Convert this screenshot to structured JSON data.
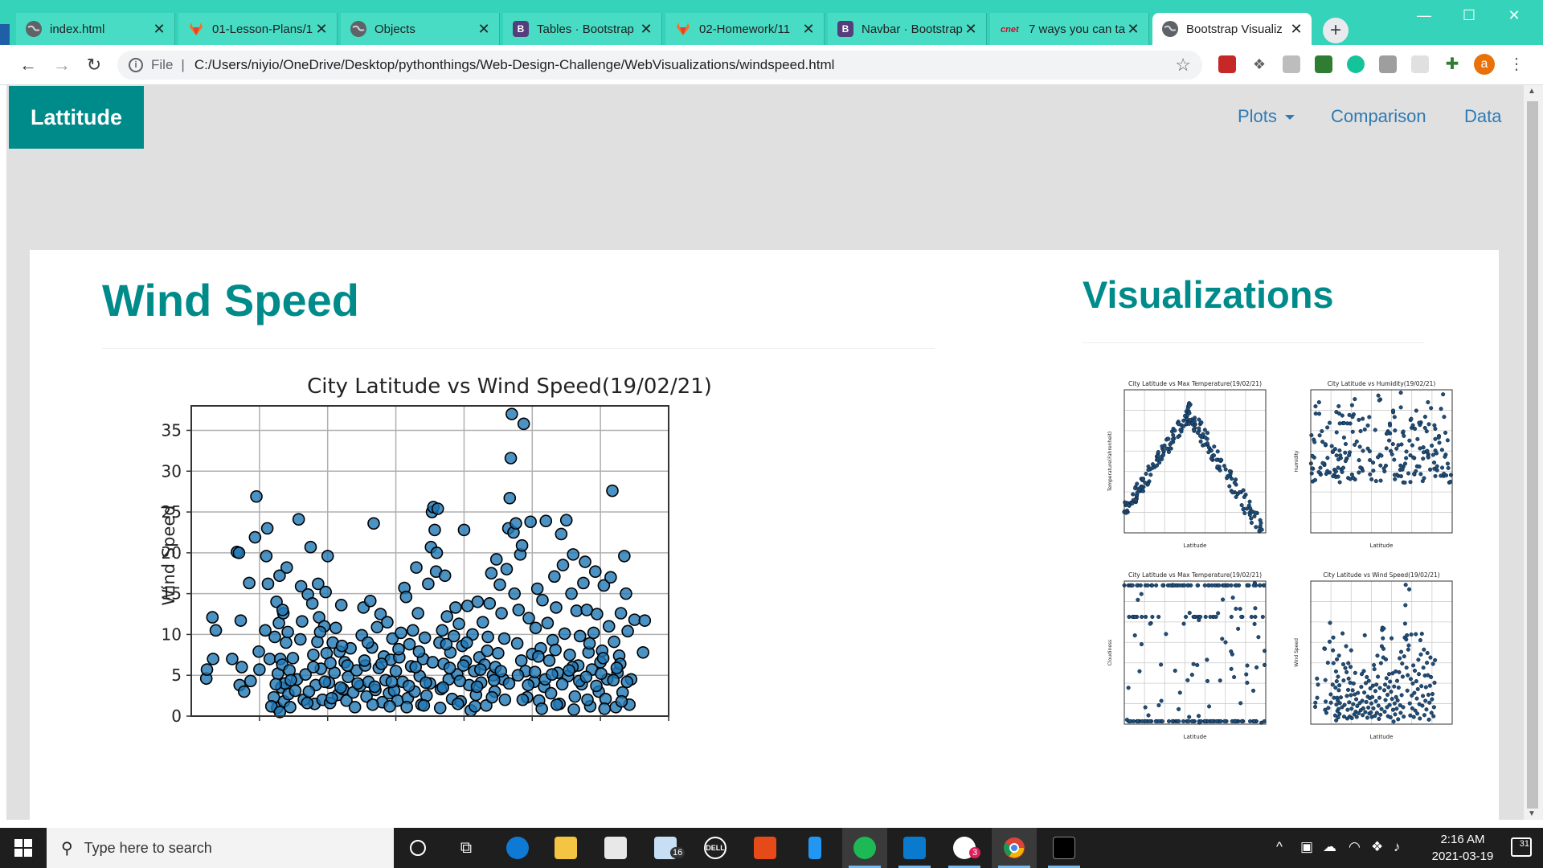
{
  "browser": {
    "tabs": [
      {
        "title": "index.html",
        "favicon": "globe-icon"
      },
      {
        "title": "01-Lesson-Plans/1",
        "favicon": "gitlab-icon"
      },
      {
        "title": "Objects",
        "favicon": "globe-icon"
      },
      {
        "title": "Tables · Bootstrap",
        "favicon": "bootstrap-icon"
      },
      {
        "title": "02-Homework/11",
        "favicon": "gitlab-icon"
      },
      {
        "title": "Navbar · Bootstrap",
        "favicon": "bootstrap-icon"
      },
      {
        "title": "7 ways you can ta",
        "favicon": "cnet-icon"
      },
      {
        "title": "Bootstrap Visualiz",
        "favicon": "globe-icon",
        "active": true
      }
    ],
    "address": {
      "scheme_label": "File",
      "url": "C:/Users/niyio/OneDrive/Desktop/pythonthings/Web-Design-Challenge/WebVisualizations/windspeed.html"
    },
    "profile_initial": "a"
  },
  "page": {
    "brand": "Lattitude",
    "nav": {
      "plots": "Plots",
      "comparison": "Comparison",
      "data": "Data"
    },
    "main_title": "Wind Speed",
    "side_title": "Visualizations",
    "accent_color": "#008b8b",
    "link_color": "#2f7ab3",
    "thumbnails": [
      {
        "title": "City Latitude vs Max Temperature(19/02/21)",
        "ylabel": "Temperature(Fahrenheit)",
        "xlabel": "Latitude"
      },
      {
        "title": "City Latitude vs Humidity(19/02/21)",
        "ylabel": "Humidity",
        "xlabel": "Latitude"
      },
      {
        "title": "City Latitude vs Max Temperature(19/02/21)",
        "ylabel": "Cloudiness",
        "xlabel": "Latitude"
      },
      {
        "title": "City Latitude vs Wind Speed(19/02/21)",
        "ylabel": "Wind Speed",
        "xlabel": "Latitude"
      }
    ]
  },
  "chart_data": {
    "type": "scatter",
    "title": "City Latitude vs Wind Speed(19/02/21)",
    "xlabel": "",
    "ylabel": "Wind Speed",
    "xlim": [
      -60,
      80
    ],
    "ylim": [
      0,
      38
    ],
    "yticks": [
      0,
      5,
      10,
      15,
      20,
      25,
      30,
      35
    ],
    "xticks": [
      -40,
      -20,
      0,
      20,
      40,
      60,
      80
    ],
    "grid": true,
    "marker_color": "#1f77b4",
    "points": [
      [
        -55.6,
        4.6
      ],
      [
        -55.4,
        5.7
      ],
      [
        -53.8,
        12.1
      ],
      [
        -53.6,
        7.0
      ],
      [
        -52.8,
        10.5
      ],
      [
        -46.6,
        20.1
      ],
      [
        -46.0,
        20.0
      ],
      [
        -45.8,
        3.8
      ],
      [
        -45.5,
        11.7
      ],
      [
        -45.2,
        6.0
      ],
      [
        -44.5,
        3.0
      ],
      [
        -43.0,
        16.3
      ],
      [
        -42.6,
        4.3
      ],
      [
        -41.3,
        21.9
      ],
      [
        -40.9,
        26.9
      ],
      [
        -40.2,
        7.9
      ],
      [
        -40.0,
        5.7
      ],
      [
        -38.3,
        10.5
      ],
      [
        -38.0,
        19.6
      ],
      [
        -37.7,
        23.0
      ],
      [
        -37.5,
        16.2
      ],
      [
        -37.0,
        7.0
      ],
      [
        -35.8,
        2.3
      ],
      [
        -35.5,
        9.7
      ],
      [
        -35.0,
        14.0
      ],
      [
        -34.8,
        1.0
      ],
      [
        -34.6,
        5.2
      ],
      [
        -34.3,
        11.4
      ],
      [
        -34.1,
        17.2
      ],
      [
        -33.9,
        7.0
      ],
      [
        -33.6,
        3.5
      ],
      [
        -33.3,
        6.3
      ],
      [
        -33.0,
        12.6
      ],
      [
        -32.8,
        1.8
      ],
      [
        -32.5,
        4.0
      ],
      [
        -32.2,
        9.0
      ],
      [
        -32.0,
        18.2
      ],
      [
        -31.7,
        10.3
      ],
      [
        -31.5,
        2.7
      ],
      [
        -31.2,
        5.6
      ],
      [
        -30.2,
        7.1
      ],
      [
        -29.0,
        4.5
      ],
      [
        -28.5,
        24.1
      ],
      [
        -27.8,
        15.9
      ],
      [
        -27.5,
        11.6
      ],
      [
        -27.0,
        2.0
      ],
      [
        -26.5,
        5.1
      ],
      [
        -25.8,
        14.9
      ],
      [
        -25.0,
        20.7
      ],
      [
        -24.5,
        13.8
      ],
      [
        -24.2,
        7.5
      ],
      [
        -23.8,
        1.5
      ],
      [
        -23.5,
        3.8
      ],
      [
        -23.0,
        9.1
      ],
      [
        -22.8,
        16.2
      ],
      [
        -22.5,
        12.1
      ],
      [
        -22.0,
        5.8
      ],
      [
        -21.5,
        2.0
      ],
      [
        -21.0,
        11.0
      ],
      [
        -20.6,
        15.2
      ],
      [
        -20.3,
        7.7
      ],
      [
        -20.0,
        19.6
      ],
      [
        -19.6,
        4.1
      ],
      [
        -19.3,
        1.6
      ],
      [
        -18.5,
        9.0
      ],
      [
        -18.0,
        5.3
      ],
      [
        -17.6,
        10.8
      ],
      [
        -17.0,
        2.6
      ],
      [
        -16.5,
        7.9
      ],
      [
        -16.0,
        13.6
      ],
      [
        -15.5,
        3.3
      ],
      [
        -15.0,
        6.6
      ],
      [
        -14.5,
        1.9
      ],
      [
        -14.0,
        4.8
      ],
      [
        -13.3,
        8.3
      ],
      [
        -12.5,
        2.9
      ],
      [
        -11.5,
        5.6
      ],
      [
        -10.5,
        3.7
      ],
      [
        -10.0,
        9.9
      ],
      [
        -9.5,
        13.3
      ],
      [
        -9.0,
        6.2
      ],
      [
        -8.6,
        2.4
      ],
      [
        -8.0,
        4.2
      ],
      [
        -7.5,
        14.1
      ],
      [
        -7.0,
        8.4
      ],
      [
        -6.5,
        23.6
      ],
      [
        -6.0,
        3.2
      ],
      [
        -5.5,
        10.9
      ],
      [
        -5.0,
        5.9
      ],
      [
        -4.5,
        12.5
      ],
      [
        -4.0,
        1.7
      ],
      [
        -3.5,
        7.3
      ],
      [
        -3.0,
        4.4
      ],
      [
        -2.5,
        11.5
      ],
      [
        -2.0,
        2.8
      ],
      [
        -1.5,
        6.9
      ],
      [
        -1.0,
        9.5
      ],
      [
        -0.5,
        3.1
      ],
      [
        0.0,
        5.5
      ],
      [
        0.5,
        1.9
      ],
      [
        1.0,
        7.2
      ],
      [
        1.5,
        10.2
      ],
      [
        2.0,
        4.2
      ],
      [
        2.5,
        15.7
      ],
      [
        3.0,
        14.6
      ],
      [
        3.5,
        2.2
      ],
      [
        4.0,
        8.8
      ],
      [
        4.5,
        6.1
      ],
      [
        5.0,
        10.5
      ],
      [
        5.5,
        3.0
      ],
      [
        6.0,
        18.2
      ],
      [
        6.5,
        12.6
      ],
      [
        7.0,
        4.9
      ],
      [
        7.5,
        1.4
      ],
      [
        8.0,
        7.0
      ],
      [
        8.5,
        9.6
      ],
      [
        9.0,
        2.5
      ],
      [
        9.5,
        16.2
      ],
      [
        10.0,
        4.0
      ],
      [
        10.3,
        20.7
      ],
      [
        10.6,
        25.0
      ],
      [
        11.0,
        25.6
      ],
      [
        11.4,
        22.8
      ],
      [
        11.8,
        17.7
      ],
      [
        12.0,
        20.0
      ],
      [
        12.3,
        25.4
      ],
      [
        12.8,
        9.0
      ],
      [
        13.2,
        3.3
      ],
      [
        13.6,
        10.5
      ],
      [
        14.0,
        6.4
      ],
      [
        14.4,
        17.2
      ],
      [
        15.0,
        12.2
      ],
      [
        15.5,
        4.5
      ],
      [
        16.0,
        7.8
      ],
      [
        16.5,
        2.1
      ],
      [
        17.0,
        9.8
      ],
      [
        17.5,
        13.3
      ],
      [
        18.0,
        5.1
      ],
      [
        18.5,
        11.3
      ],
      [
        19.0,
        1.8
      ],
      [
        19.5,
        8.6
      ],
      [
        20.0,
        22.8
      ],
      [
        20.5,
        6.7
      ],
      [
        21.0,
        13.5
      ],
      [
        21.5,
        3.8
      ],
      [
        22.0,
        0.7
      ],
      [
        22.5,
        10.0
      ],
      [
        23.0,
        5.5
      ],
      [
        23.5,
        2.6
      ],
      [
        24.0,
        14.0
      ],
      [
        24.5,
        7.2
      ],
      [
        25.0,
        4.1
      ],
      [
        25.5,
        11.5
      ],
      [
        26.0,
        6.3
      ],
      [
        26.5,
        1.3
      ],
      [
        27.0,
        9.7
      ],
      [
        27.5,
        13.8
      ],
      [
        28.0,
        17.5
      ],
      [
        28.5,
        5.0
      ],
      [
        29.0,
        3.0
      ],
      [
        29.5,
        19.2
      ],
      [
        30.0,
        7.7
      ],
      [
        30.5,
        16.1
      ],
      [
        31.0,
        12.6
      ],
      [
        31.5,
        4.5
      ],
      [
        32.0,
        2.0
      ],
      [
        32.5,
        18.0
      ],
      [
        33.0,
        23.0
      ],
      [
        33.4,
        26.7
      ],
      [
        33.7,
        31.6
      ],
      [
        34.0,
        37.0
      ],
      [
        34.5,
        22.5
      ],
      [
        34.8,
        15.0
      ],
      [
        35.2,
        23.6
      ],
      [
        35.6,
        8.9
      ],
      [
        36.0,
        13.0
      ],
      [
        36.5,
        19.8
      ],
      [
        37.0,
        20.9
      ],
      [
        37.5,
        35.8
      ],
      [
        38.0,
        5.5
      ],
      [
        38.5,
        2.3
      ],
      [
        39.0,
        12.0
      ],
      [
        39.5,
        23.8
      ],
      [
        40.0,
        7.6
      ],
      [
        40.5,
        4.2
      ],
      [
        41.0,
        10.8
      ],
      [
        41.5,
        15.6
      ],
      [
        42.0,
        1.9
      ],
      [
        42.5,
        8.3
      ],
      [
        43.0,
        14.2
      ],
      [
        43.5,
        3.6
      ],
      [
        44.0,
        23.9
      ],
      [
        44.5,
        11.4
      ],
      [
        45.0,
        6.8
      ],
      [
        45.5,
        2.8
      ],
      [
        46.0,
        9.3
      ],
      [
        46.5,
        17.1
      ],
      [
        47.0,
        13.3
      ],
      [
        47.5,
        5.3
      ],
      [
        48.0,
        1.5
      ],
      [
        48.5,
        22.3
      ],
      [
        49.0,
        18.5
      ],
      [
        49.5,
        10.1
      ],
      [
        50.0,
        24.0
      ],
      [
        50.5,
        4.9
      ],
      [
        51.0,
        7.5
      ],
      [
        51.5,
        15.0
      ],
      [
        52.0,
        19.8
      ],
      [
        52.5,
        2.4
      ],
      [
        53.0,
        12.9
      ],
      [
        53.5,
        6.2
      ],
      [
        54.0,
        9.8
      ],
      [
        54.5,
        3.9
      ],
      [
        55.0,
        16.3
      ],
      [
        55.5,
        18.9
      ],
      [
        56.0,
        13.0
      ],
      [
        56.5,
        7.8
      ],
      [
        57.0,
        1.2
      ],
      [
        57.5,
        5.7
      ],
      [
        58.0,
        10.2
      ],
      [
        58.5,
        17.7
      ],
      [
        59.0,
        12.5
      ],
      [
        59.5,
        3.0
      ],
      [
        60.0,
        6.6
      ],
      [
        60.5,
        8.0
      ],
      [
        61.0,
        16.0
      ],
      [
        61.5,
        2.1
      ],
      [
        62.0,
        4.5
      ],
      [
        62.5,
        11.0
      ],
      [
        63.0,
        17.0
      ],
      [
        63.5,
        27.6
      ],
      [
        64.0,
        9.1
      ],
      [
        64.5,
        1.1
      ],
      [
        65.0,
        5.3
      ],
      [
        65.5,
        7.4
      ],
      [
        66.0,
        12.6
      ],
      [
        66.5,
        2.9
      ],
      [
        67.0,
        19.6
      ],
      [
        67.5,
        15.0
      ],
      [
        68.0,
        10.4
      ],
      [
        68.5,
        1.4
      ],
      [
        69.0,
        4.5
      ],
      [
        70.0,
        11.8
      ],
      [
        72.5,
        7.8
      ],
      [
        73.0,
        11.7
      ],
      [
        -48.0,
        7.0
      ],
      [
        -36.5,
        1.2
      ],
      [
        -29.5,
        3.1
      ],
      [
        -26.0,
        1.6
      ],
      [
        -18.8,
        2.2
      ],
      [
        -12.0,
        1.1
      ],
      [
        -6.8,
        1.4
      ],
      [
        -1.8,
        1.2
      ],
      [
        3.2,
        1.1
      ],
      [
        8.2,
        1.3
      ],
      [
        13.0,
        1.0
      ],
      [
        18.2,
        1.5
      ],
      [
        23.2,
        1.2
      ],
      [
        28.2,
        2.3
      ],
      [
        37.2,
        2.0
      ],
      [
        42.8,
        0.9
      ],
      [
        47.2,
        1.4
      ],
      [
        52.2,
        0.8
      ],
      [
        56.2,
        2.0
      ],
      [
        61.2,
        0.9
      ],
      [
        66.2,
        1.8
      ],
      [
        -35.2,
        3.9
      ],
      [
        -30.8,
        4.4
      ],
      [
        -25.5,
        3.0
      ],
      [
        -20.8,
        4.2
      ],
      [
        -16.2,
        3.5
      ],
      [
        -11.2,
        4.0
      ],
      [
        -6.2,
        3.6
      ],
      [
        -1.2,
        4.2
      ],
      [
        3.8,
        3.7
      ],
      [
        8.8,
        4.1
      ],
      [
        13.8,
        3.5
      ],
      [
        18.8,
        4.3
      ],
      [
        23.8,
        3.6
      ],
      [
        28.8,
        4.4
      ],
      [
        33.2,
        4.0
      ],
      [
        38.8,
        3.8
      ],
      [
        43.8,
        4.5
      ],
      [
        48.8,
        3.9
      ],
      [
        53.8,
        4.3
      ],
      [
        58.8,
        3.7
      ],
      [
        63.8,
        4.4
      ],
      [
        -33.2,
        13.0
      ],
      [
        -28.0,
        9.4
      ],
      [
        -22.2,
        10.3
      ],
      [
        -15.8,
        8.6
      ],
      [
        -8.2,
        9.0
      ],
      [
        0.8,
        8.2
      ],
      [
        6.8,
        7.9
      ],
      [
        14.8,
        8.8
      ],
      [
        20.8,
        9.0
      ],
      [
        26.8,
        8.0
      ],
      [
        31.8,
        9.5
      ],
      [
        36.8,
        6.8
      ],
      [
        41.8,
        7.3
      ],
      [
        46.8,
        8.1
      ],
      [
        51.8,
        6.0
      ],
      [
        56.8,
        8.9
      ],
      [
        60.8,
        7.1
      ],
      [
        65.8,
        6.4
      ],
      [
        -34.0,
        0.5
      ],
      [
        -31.0,
        1.1
      ],
      [
        29.2,
        6.0
      ],
      [
        24.8,
        5.7
      ],
      [
        19.8,
        6.2
      ],
      [
        15.8,
        5.9
      ],
      [
        10.8,
        6.6
      ],
      [
        5.8,
        6.0
      ],
      [
        -4.2,
        6.4
      ],
      [
        -9.2,
        6.8
      ],
      [
        -14.2,
        6.2
      ],
      [
        -19.2,
        6.5
      ],
      [
        -24.2,
        6.0
      ],
      [
        30.8,
        5.5
      ],
      [
        35.8,
        5.0
      ],
      [
        40.8,
        5.4
      ],
      [
        45.8,
        5.1
      ],
      [
        50.8,
        5.6
      ],
      [
        55.8,
        4.8
      ],
      [
        60.2,
        5.2
      ],
      [
        64.8,
        5.9
      ],
      [
        67.8,
        4.2
      ]
    ]
  },
  "taskbar": {
    "search_placeholder": "Type here to search",
    "mail_badge": "16",
    "slack_badge": "3",
    "time": "2:16 AM",
    "date": "2021-03-19",
    "notifications": "31"
  }
}
